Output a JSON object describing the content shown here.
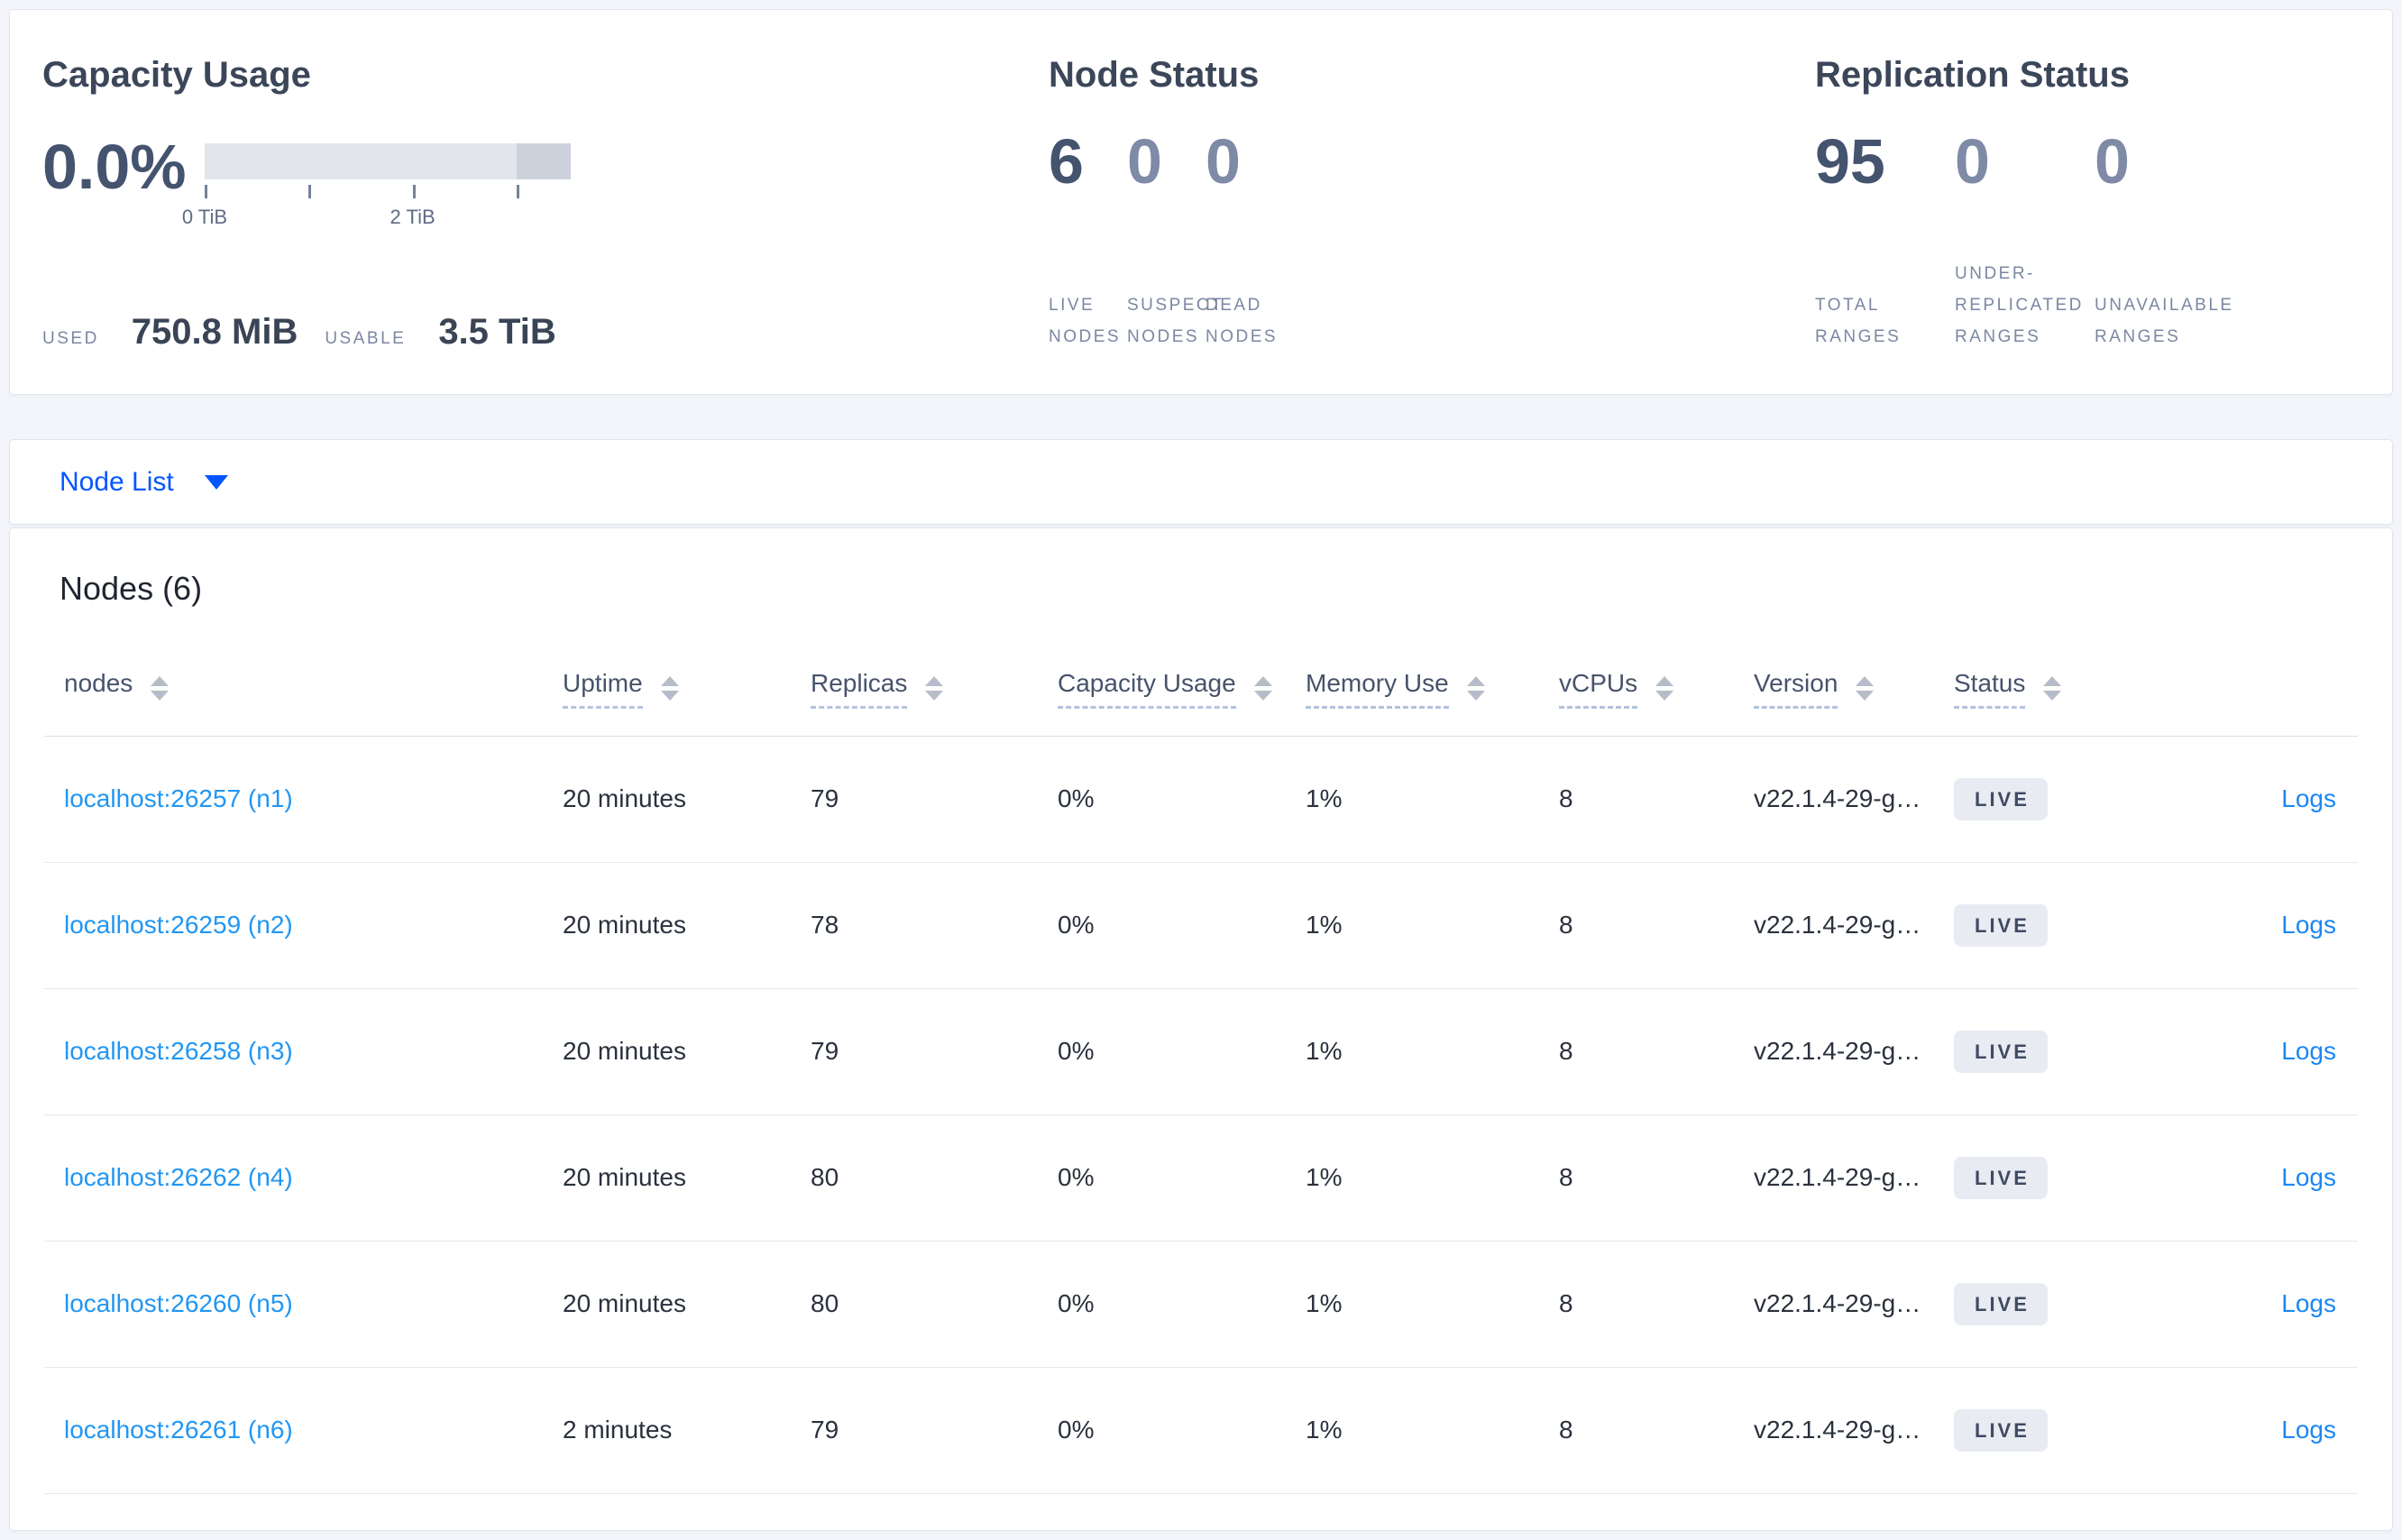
{
  "colors": {
    "link_blue": "#2196f3",
    "node_list_blue": "#0355ff",
    "badge_bg": "#e8ebf2",
    "stat_dark": "#44536e",
    "stat_muted": "#7e8aa6"
  },
  "capacity": {
    "title": "Capacity Usage",
    "percent": "0.0%",
    "tick0": "0 TiB",
    "tick2": "2 TiB",
    "used_label": "USED",
    "used_value": "750.8 MiB",
    "usable_label": "USABLE",
    "usable_value": "3.5 TiB"
  },
  "node_status": {
    "title": "Node Status",
    "stats": [
      {
        "value": "6",
        "label": "LIVE NODES"
      },
      {
        "value": "0",
        "label": "SUSPECT NODES"
      },
      {
        "value": "0",
        "label": "DEAD NODES"
      }
    ]
  },
  "replication": {
    "title": "Replication Status",
    "stats": [
      {
        "value": "95",
        "label": "TOTAL RANGES"
      },
      {
        "value": "0",
        "label": "UNDER-REPLICATED RANGES"
      },
      {
        "value": "0",
        "label": "UNAVAILABLE RANGES"
      }
    ]
  },
  "node_list": {
    "label": "Node List"
  },
  "nodes_table": {
    "title": "Nodes (6)",
    "columns": [
      {
        "label": "nodes"
      },
      {
        "label": "Uptime"
      },
      {
        "label": "Replicas"
      },
      {
        "label": "Capacity Usage"
      },
      {
        "label": "Memory Use"
      },
      {
        "label": "vCPUs"
      },
      {
        "label": "Version"
      },
      {
        "label": "Status"
      }
    ],
    "rows": [
      {
        "node": "localhost:26257 (n1)",
        "uptime": "20 minutes",
        "replicas": "79",
        "capacity": "0%",
        "memory": "1%",
        "vcpus": "8",
        "version": "v22.1.4-29-g…",
        "status": "LIVE",
        "logs": "Logs"
      },
      {
        "node": "localhost:26259 (n2)",
        "uptime": "20 minutes",
        "replicas": "78",
        "capacity": "0%",
        "memory": "1%",
        "vcpus": "8",
        "version": "v22.1.4-29-g…",
        "status": "LIVE",
        "logs": "Logs"
      },
      {
        "node": "localhost:26258 (n3)",
        "uptime": "20 minutes",
        "replicas": "79",
        "capacity": "0%",
        "memory": "1%",
        "vcpus": "8",
        "version": "v22.1.4-29-g…",
        "status": "LIVE",
        "logs": "Logs"
      },
      {
        "node": "localhost:26262 (n4)",
        "uptime": "20 minutes",
        "replicas": "80",
        "capacity": "0%",
        "memory": "1%",
        "vcpus": "8",
        "version": "v22.1.4-29-g…",
        "status": "LIVE",
        "logs": "Logs"
      },
      {
        "node": "localhost:26260 (n5)",
        "uptime": "20 minutes",
        "replicas": "80",
        "capacity": "0%",
        "memory": "1%",
        "vcpus": "8",
        "version": "v22.1.4-29-g…",
        "status": "LIVE",
        "logs": "Logs"
      },
      {
        "node": "localhost:26261 (n6)",
        "uptime": "2 minutes",
        "replicas": "79",
        "capacity": "0%",
        "memory": "1%",
        "vcpus": "8",
        "version": "v22.1.4-29-g…",
        "status": "LIVE",
        "logs": "Logs"
      }
    ]
  }
}
